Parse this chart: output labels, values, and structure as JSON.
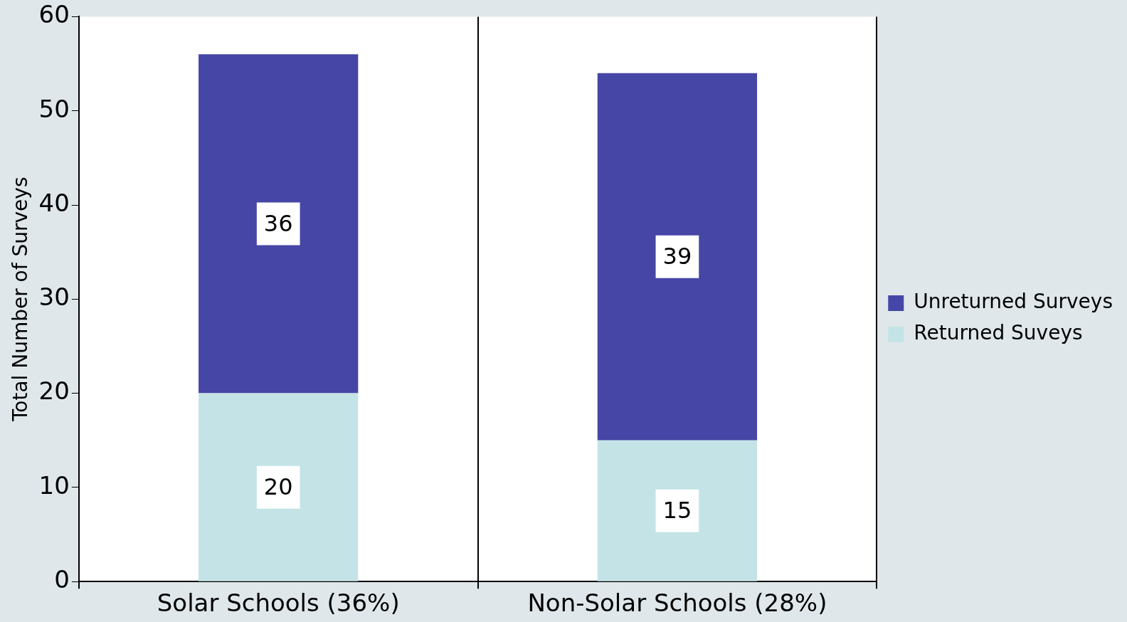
{
  "chart_data": {
    "type": "bar",
    "stacked": true,
    "ylabel": "Total Number of Surveys",
    "categories": [
      "Solar Schools (36%)",
      "Non-Solar Schools (28%)"
    ],
    "series": [
      {
        "name": "Returned Suveys",
        "color": "#c4e3e6",
        "values": [
          20,
          15
        ]
      },
      {
        "name": "Unreturned Surveys",
        "color": "#4646a6",
        "values": [
          36,
          39
        ]
      }
    ],
    "ylim": [
      0,
      60
    ],
    "yticks": [
      0,
      10,
      20,
      30,
      40,
      50,
      60
    ],
    "grid": "x",
    "legend": "right",
    "data_labels": true
  }
}
